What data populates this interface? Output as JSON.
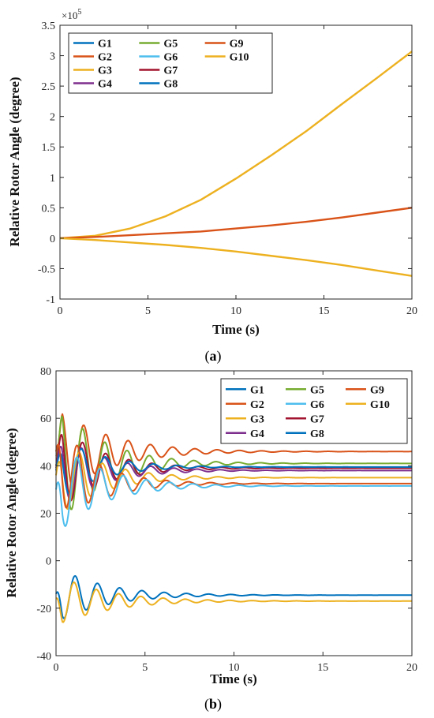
{
  "colors": {
    "G1": "#0072BD",
    "G2": "#D95319",
    "G3": "#EDB120",
    "G4": "#7E2F8E",
    "G5": "#77AC30",
    "G6": "#4DBEEE",
    "G7": "#A2142F",
    "G8": "#0072BD",
    "G9": "#D95319",
    "G10": "#EDB120"
  },
  "chart_data": [
    {
      "type": "line",
      "caption_letter": "a",
      "xlabel": "Time (s)",
      "ylabel": "Relative Rotor Angle (degree)",
      "xlim": [
        0,
        20
      ],
      "ylim": [
        -1,
        3.5
      ],
      "y_multiplier": "×10",
      "y_multiplier_exp": "5",
      "xticks": [
        "0",
        "5",
        "10",
        "15",
        "20"
      ],
      "yticks": [
        "-1",
        "-0.5",
        "0",
        "0.5",
        "1",
        "1.5",
        "2",
        "2.5",
        "3",
        "3.5"
      ],
      "legend_position": "top-left",
      "legend": [
        "G1",
        "G2",
        "G3",
        "G4",
        "G5",
        "G6",
        "G7",
        "G8",
        "G9",
        "G10"
      ],
      "series": [
        {
          "name": "G10",
          "x": [
            0,
            2,
            4,
            6,
            8,
            10,
            12,
            14,
            16,
            18,
            20
          ],
          "y": [
            0,
            0.04,
            0.16,
            0.36,
            0.63,
            0.98,
            1.36,
            1.76,
            2.2,
            2.63,
            3.07
          ]
        },
        {
          "name": "G9",
          "x": [
            0,
            2,
            4,
            6,
            8,
            10,
            12,
            14,
            16,
            18,
            20
          ],
          "y": [
            0,
            0.02,
            0.05,
            0.08,
            0.11,
            0.16,
            0.21,
            0.27,
            0.34,
            0.42,
            0.5
          ]
        },
        {
          "name": "G3",
          "x": [
            0,
            2,
            4,
            6,
            8,
            10,
            12,
            14,
            16,
            18,
            20
          ],
          "y": [
            0,
            -0.03,
            -0.07,
            -0.11,
            -0.16,
            -0.22,
            -0.29,
            -0.36,
            -0.44,
            -0.53,
            -0.62
          ]
        }
      ]
    },
    {
      "type": "line",
      "caption_letter": "b",
      "xlabel": "Time (s)",
      "ylabel": "Relative Rotor Angle (degree)",
      "xlim": [
        0,
        20
      ],
      "ylim": [
        -40,
        80
      ],
      "xticks": [
        "0",
        "5",
        "10",
        "15",
        "20"
      ],
      "yticks": [
        "-40",
        "-20",
        "0",
        "20",
        "40",
        "60",
        "80"
      ],
      "legend_position": "top-right",
      "legend": [
        "G1",
        "G2",
        "G3",
        "G4",
        "G5",
        "G6",
        "G7",
        "G8",
        "G9",
        "G10"
      ],
      "series": [
        {
          "name": "G9",
          "base": 46,
          "init": 44,
          "amp": 20,
          "decay": 0.36,
          "period": 1.25
        },
        {
          "name": "G5",
          "base": 41,
          "init": 40,
          "amp": 27,
          "decay": 0.4,
          "period": 1.25
        },
        {
          "name": "G7",
          "base": 39,
          "init": 40,
          "amp": 20,
          "decay": 0.42,
          "period": 1.3
        },
        {
          "name": "G4",
          "base": 38,
          "init": 39,
          "amp": 17,
          "decay": 0.42,
          "period": 1.3
        },
        {
          "name": "G8",
          "base": 39.5,
          "init": 38,
          "amp": 15,
          "decay": 0.45,
          "period": 1.35
        },
        {
          "name": "G10",
          "base": 35,
          "init": 36,
          "amp": 18,
          "decay": 0.42,
          "period": 1.3
        },
        {
          "name": "G2",
          "base": 32.5,
          "init": 46,
          "amp": 22,
          "decay": 0.45,
          "period": 1.25
        },
        {
          "name": "G6",
          "base": 31.5,
          "init": 30,
          "amp": 20,
          "decay": 0.4,
          "period": 1.3
        },
        {
          "name": "G1",
          "base": -14.5,
          "init": -14,
          "amp": 12,
          "decay": 0.38,
          "period": 1.25
        },
        {
          "name": "G3",
          "base": -17,
          "init": -16,
          "amp": 11,
          "decay": 0.36,
          "period": 1.25
        }
      ]
    }
  ]
}
